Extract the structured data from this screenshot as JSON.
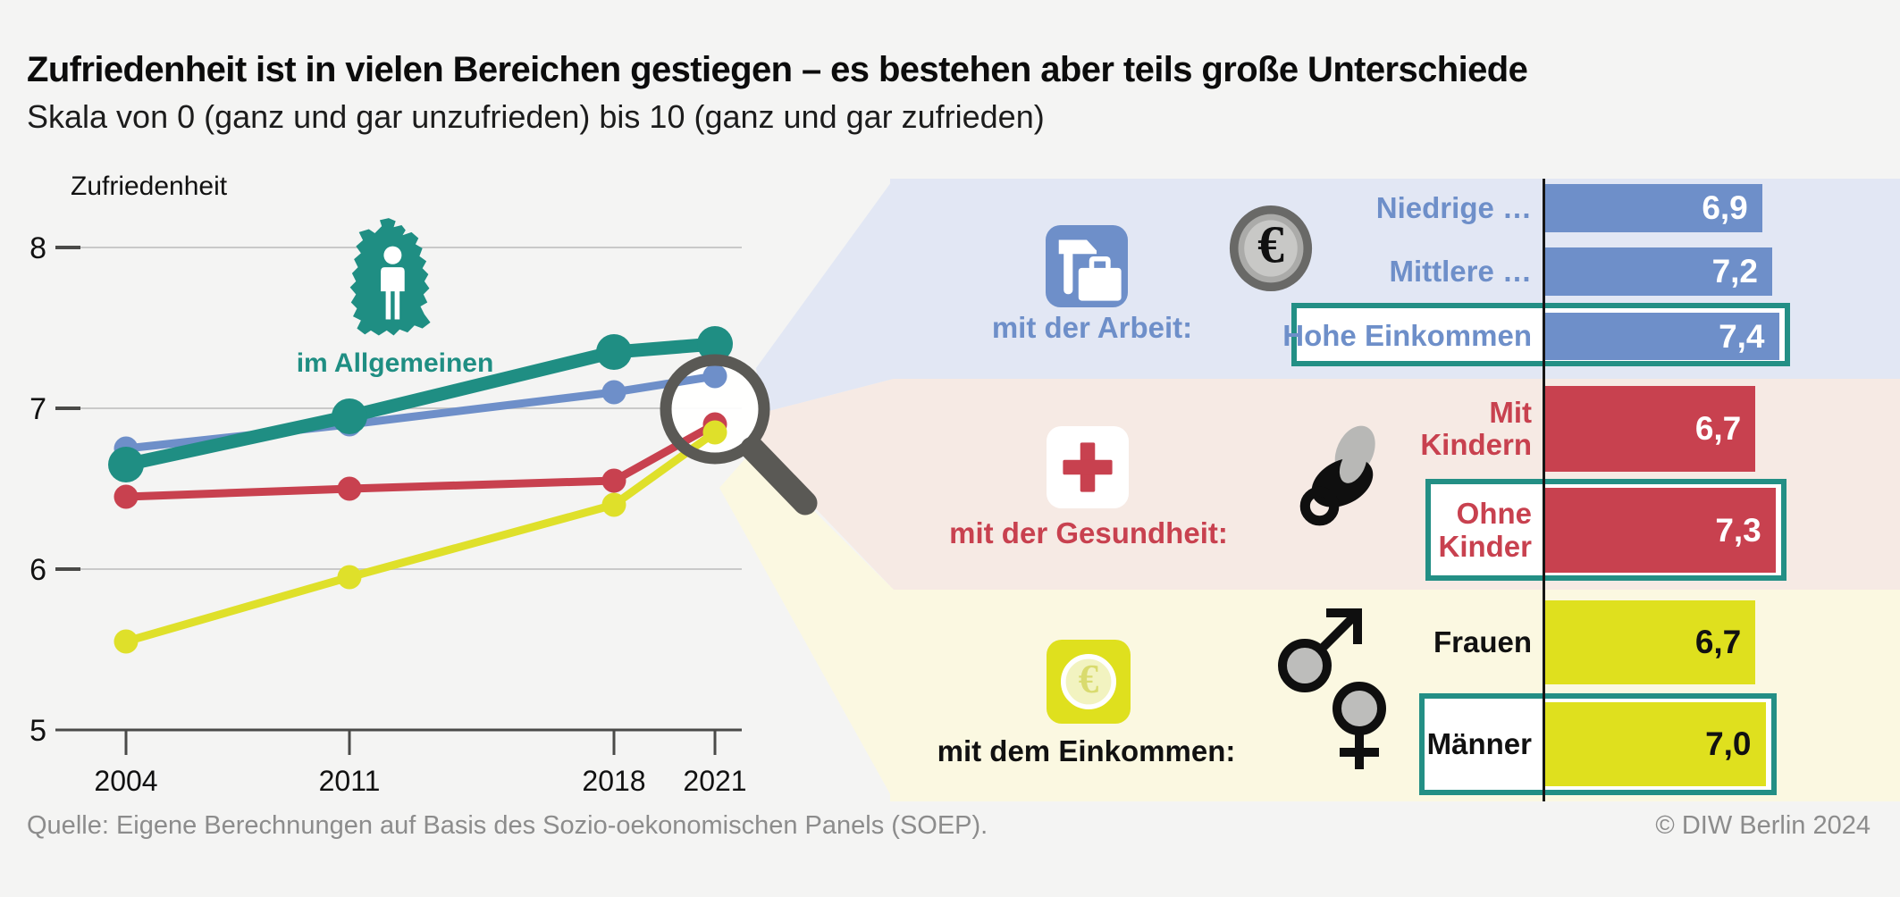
{
  "header": {
    "title": "Zufriedenheit ist in vielen Bereichen gestiegen – es bestehen aber teils große Unterschiede",
    "subtitle": "Skala von 0 (ganz und gar unzufrieden) bis 10 (ganz und gar zufrieden)"
  },
  "footer": {
    "source": "Quelle: Eigene Berechnungen auf Basis des Sozio-oekonomischen Panels (SOEP).",
    "copyright": "© DIW Berlin 2024"
  },
  "colors": {
    "background": "#F4F4F3",
    "teal": "#1F8E83",
    "blue": "#6E8FC9",
    "red": "#C8414F",
    "yellow": "#DFE01E",
    "panel_blue": "#E2E7F4",
    "panel_pink": "#F6EAE4",
    "panel_yellow": "#FBF8E1",
    "magnifier_gray": "#5A5955",
    "grid": "#C9C9C9",
    "axis": "#4A4A48",
    "highlight_border": "#238F85",
    "source_text": "#8C8C8C"
  },
  "chart_data": [
    {
      "type": "line",
      "axis_label": "Zufriedenheit",
      "map_label": "im Allgemeinen",
      "x": [
        2004,
        2011,
        2018,
        2021
      ],
      "x_tick_labels": [
        "2004",
        "2011",
        "2018",
        "2021"
      ],
      "y_ticks": [
        5,
        6,
        7,
        8
      ],
      "ylim": [
        5,
        8
      ],
      "grid": true,
      "series": [
        {
          "name": "im Allgemeinen",
          "color": "#1F8E83",
          "values": [
            6.65,
            6.95,
            7.35,
            7.4
          ]
        },
        {
          "name": "mit der Arbeit",
          "color": "#6E8FC9",
          "values": [
            6.75,
            6.9,
            7.1,
            7.2
          ]
        },
        {
          "name": "mit der Gesundheit",
          "color": "#C8414F",
          "values": [
            6.45,
            6.5,
            6.55,
            6.9
          ]
        },
        {
          "name": "mit dem Einkommen",
          "color": "#DFE02A",
          "values": [
            5.55,
            5.95,
            6.4,
            6.85
          ]
        }
      ]
    },
    {
      "type": "bar",
      "orientation": "horizontal",
      "value_decimal_style": "comma",
      "groups": [
        {
          "name": "mit der Arbeit:",
          "icon": "work-briefcase-icon",
          "secondary_icon": "euro-coin-icon",
          "bar_color": "#6E8FC9",
          "label_color": "#6E8FC9",
          "value_text_color": "#FFFFFF",
          "bars": [
            {
              "label": "Niedrige …",
              "value": 6.9,
              "display": "6,9",
              "highlight": false
            },
            {
              "label": "Mittlere …",
              "value": 7.2,
              "display": "7,2",
              "highlight": false
            },
            {
              "label": "Hohe Einkommen",
              "value": 7.4,
              "display": "7,4",
              "highlight": true
            }
          ]
        },
        {
          "name": "mit der Gesundheit:",
          "icon": "red-cross-icon",
          "secondary_icon": "pacifier-icon",
          "bar_color": "#C8414F",
          "label_color": "#C8414F",
          "value_text_color": "#FFFFFF",
          "bars": [
            {
              "label": "Mit\nKindern",
              "value": 6.7,
              "display": "6,7",
              "highlight": false
            },
            {
              "label": "Ohne\nKinder",
              "value": 7.3,
              "display": "7,3",
              "highlight": true
            }
          ]
        },
        {
          "name": "mit dem Einkommen:",
          "icon": "euro-square-icon",
          "secondary_icon": "gender-icon",
          "bar_color": "#DFE01E",
          "label_color": "#111111",
          "value_text_color": "#111111",
          "bars": [
            {
              "label": "Frauen",
              "value": 6.7,
              "display": "6,7",
              "highlight": false
            },
            {
              "label": "Männer",
              "value": 7.0,
              "display": "7,0",
              "highlight": true
            }
          ]
        }
      ]
    }
  ]
}
